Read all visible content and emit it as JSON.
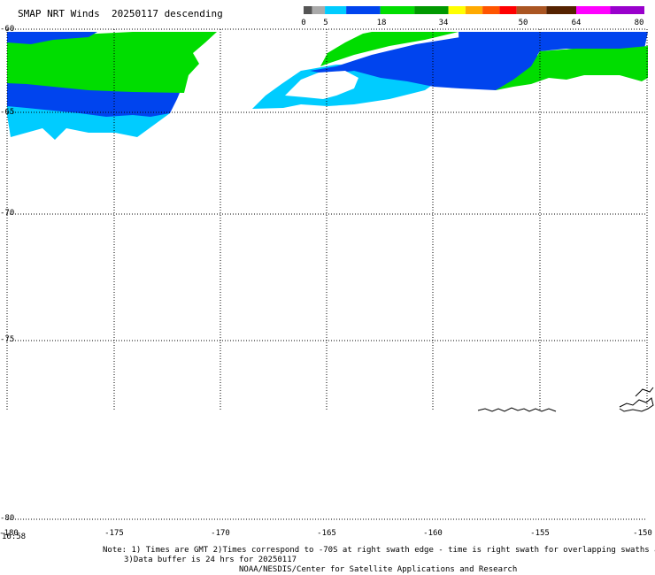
{
  "title": "SMAP NRT Winds  20250117 descending",
  "colorbar": {
    "labels": [
      "0",
      "5",
      "18",
      "34",
      "50",
      "64",
      "80"
    ],
    "segments": [
      {
        "from": 0,
        "to": 2,
        "color": "#555555"
      },
      {
        "from": 2,
        "to": 5,
        "color": "#aaaaaa"
      },
      {
        "from": 5,
        "to": 10,
        "color": "#00ccff"
      },
      {
        "from": 10,
        "to": 18,
        "color": "#0044ee"
      },
      {
        "from": 18,
        "to": 26,
        "color": "#00dd00"
      },
      {
        "from": 26,
        "to": 34,
        "color": "#009900"
      },
      {
        "from": 34,
        "to": 38,
        "color": "#ffff00"
      },
      {
        "from": 38,
        "to": 42,
        "color": "#ffaa00"
      },
      {
        "from": 42,
        "to": 46,
        "color": "#ff5500"
      },
      {
        "from": 46,
        "to": 50,
        "color": "#ff0000"
      },
      {
        "from": 50,
        "to": 57,
        "color": "#aa5522"
      },
      {
        "from": 57,
        "to": 64,
        "color": "#552200"
      },
      {
        "from": 64,
        "to": 72,
        "color": "#ff00ff"
      },
      {
        "from": 72,
        "to": 80,
        "color": "#9900cc"
      }
    ]
  },
  "map": {
    "lat_labels": [
      "-60",
      "-65",
      "-70",
      "-75",
      "-80"
    ],
    "lon_labels": [
      "-180",
      "-175",
      "-170",
      "-165",
      "-160",
      "-155",
      "-150"
    ],
    "time_label": "16:58"
  },
  "notes": {
    "line1": "Note: 1) Times are GMT 2)Times correspond to -70S at right swath edge - time is right swath for overlapping swaths at -70S",
    "line2": "3)Data buffer is 24 hrs for 20250117",
    "credit": "NOAA/NESDIS/Center for Satellite Applications and Research"
  },
  "colors": {
    "wind_cyan": "#00ccff",
    "wind_blue": "#0044ee",
    "wind_green": "#00dd00"
  }
}
